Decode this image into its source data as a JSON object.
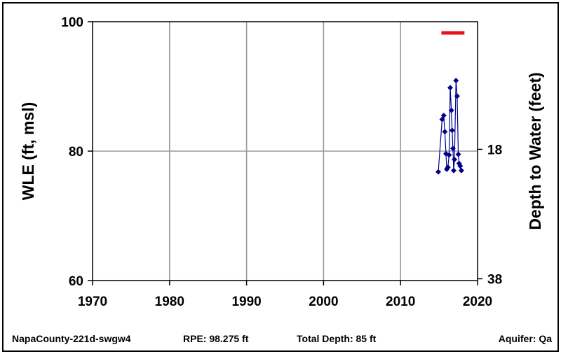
{
  "chart_data": {
    "type": "line",
    "xlim": [
      1970,
      2020
    ],
    "ylim": [
      60,
      100
    ],
    "x_ticks": [
      "1970",
      "1980",
      "1990",
      "2000",
      "2010",
      "2020"
    ],
    "y_ticks": [
      "60",
      "80",
      "100"
    ],
    "y2_ticks": [
      "18",
      "38"
    ],
    "ylabel": "WLE (ft, msl)",
    "y2label": "Depth to Water (feet)",
    "grid": true,
    "series": [
      {
        "color": "#00008B",
        "points": [
          [
            2014.9,
            76.8
          ],
          [
            2015.4,
            84.9
          ],
          [
            2015.6,
            85.5
          ],
          [
            2015.75,
            83.0
          ],
          [
            2015.9,
            79.6
          ],
          [
            2016.0,
            77.2
          ],
          [
            2016.15,
            77.5
          ],
          [
            2016.3,
            79.4
          ],
          [
            2016.45,
            89.8
          ],
          [
            2016.6,
            86.3
          ],
          [
            2016.7,
            83.2
          ],
          [
            2016.8,
            80.4
          ],
          [
            2016.9,
            77.0
          ],
          [
            2017.0,
            78.7
          ],
          [
            2017.2,
            90.9
          ],
          [
            2017.35,
            88.5
          ],
          [
            2017.5,
            79.5
          ],
          [
            2017.6,
            78.1
          ],
          [
            2017.75,
            77.7
          ],
          [
            2017.9,
            77.0
          ]
        ]
      }
    ],
    "reference_bar": {
      "color": "#E8101A",
      "x": [
        2015.3,
        2018.3
      ],
      "y": 98.275
    }
  },
  "footer": {
    "well_id": "NapaCounty-221d-swgw4",
    "rpe": "RPE: 98.275 ft",
    "total_depth": "Total Depth: 85 ft",
    "aquifer": "Aquifer: Qa"
  }
}
